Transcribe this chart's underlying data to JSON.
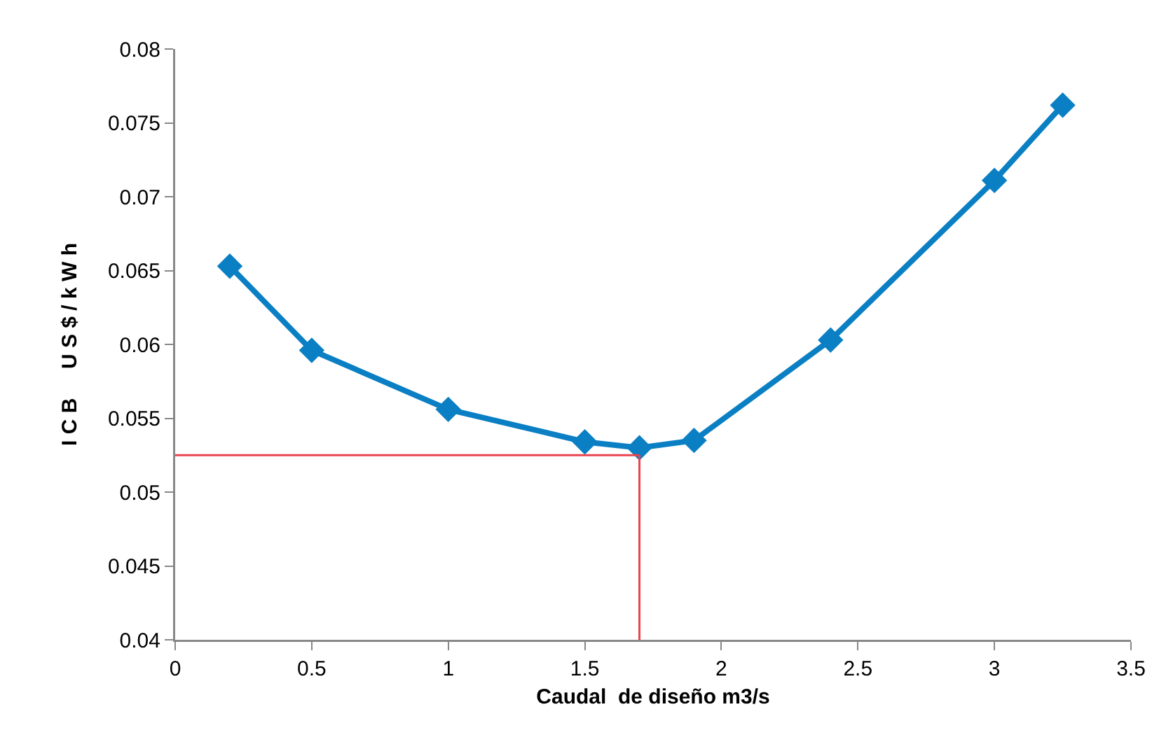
{
  "chart_data": {
    "type": "line",
    "xlabel": "Caudal  de diseño m3/s",
    "ylabel": "I C B     U S $ / k W h",
    "x": [
      0.2,
      0.5,
      1,
      1.5,
      1.7,
      1.9,
      2.4,
      3,
      3.25
    ],
    "series": [
      {
        "color": "#0a7fc4",
        "values": [
          0.0653,
          0.0596,
          0.0556,
          0.0534,
          0.053,
          0.0535,
          0.0603,
          0.0711,
          0.0762
        ]
      }
    ],
    "xlim": [
      0,
      3.5
    ],
    "xticks": [
      0,
      0.5,
      1,
      1.5,
      2,
      2.5,
      3,
      3.5
    ],
    "ylim": [
      0.04,
      0.08
    ],
    "yticks": [
      0.04,
      0.045,
      0.05,
      0.055,
      0.06,
      0.065,
      0.07,
      0.075,
      0.08
    ],
    "ref_lines": [
      {
        "axis": "y",
        "value": 0.0525,
        "color": "#e8454d"
      },
      {
        "axis": "x",
        "value": 1.7,
        "color": "#e8454d"
      }
    ],
    "grid": false,
    "marker": "diamond",
    "line_style": "solid"
  }
}
